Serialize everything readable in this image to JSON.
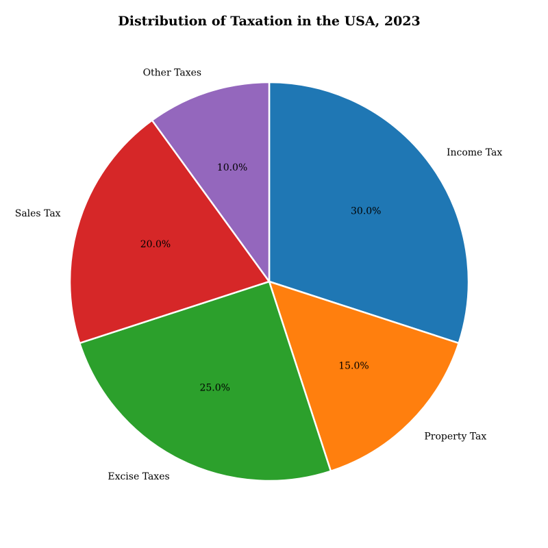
{
  "chart_data": {
    "type": "pie",
    "title": "Distribution of Taxation in the USA, 2023",
    "start_angle_deg": 90,
    "direction": "clockwise",
    "slice_edge_color": "#ffffff",
    "slices": [
      {
        "label": "Income Tax",
        "value": 30.0,
        "pct_label": "30.0%",
        "color": "#1f77b4"
      },
      {
        "label": "Property Tax",
        "value": 15.0,
        "pct_label": "15.0%",
        "color": "#ff7f0e"
      },
      {
        "label": "Excise Taxes",
        "value": 25.0,
        "pct_label": "25.0%",
        "color": "#2ca02c"
      },
      {
        "label": "Sales Tax",
        "value": 20.0,
        "pct_label": "20.0%",
        "color": "#d62728"
      },
      {
        "label": "Other Taxes",
        "value": 10.0,
        "pct_label": "10.0%",
        "color": "#9467bd"
      }
    ]
  }
}
